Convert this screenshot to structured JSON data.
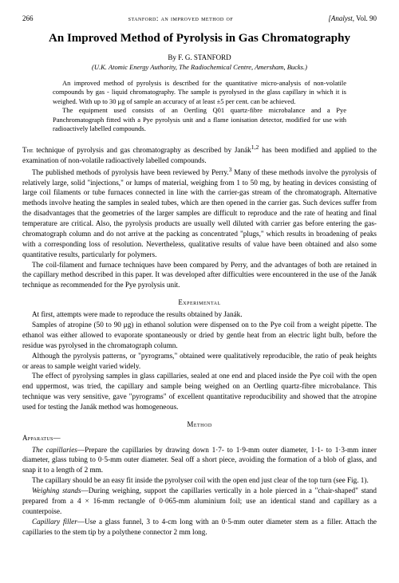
{
  "header": {
    "page_number": "266",
    "running_head": "stanford: an improved method of",
    "journal_ref_prefix": "[Analyst,",
    "journal_ref_vol": " Vol. 90"
  },
  "title": "An Improved Method of Pyrolysis in Gas Chromatography",
  "byline_prefix": "By ",
  "author": "F. G. STANFORD",
  "affiliation": "(U.K. Atomic Energy Authority, The Radiochemical Centre, Amersham, Bucks.)",
  "abstract": {
    "p1": "An improved method of pyrolysis is described for the quantitative micro-analysis of non-volatile compounds by gas - liquid chromatography. The sample is pyrolysed in the glass capillary in which it is weighed. With up to 30 μg of sample an accuracy of at least ±5 per cent. can be achieved.",
    "p2": "The equipment used consists of an Oertling Q01 quartz-fibre microbalance and a Pye Panchromatograph fitted with a Pye pyrolysis unit and a flame ionisation detector, modified for use with radioactively labelled compounds."
  },
  "intro": {
    "p1_a": "The",
    "p1_b": " technique of pyrolysis and gas chromatography as described by Janák",
    "p1_sup": "1,2",
    "p1_c": " has been modified and applied to the examination of non-volatile radioactively labelled compounds.",
    "p2_a": "The published methods of pyrolysis have been reviewed by Perry.",
    "p2_sup": "3",
    "p2_b": " Many of these methods involve the pyrolysis of relatively large, solid \"injections,\" or lumps of material, weighing from 1 to 50 mg, by heating in devices consisting of large coil filaments or tube furnaces connected in line with the carrier-gas stream of the chromatograph. Alternative methods involve heating the samples in sealed tubes, which are then opened in the carrier gas. Such devices suffer from the disadvantages that the geometries of the larger samples are difficult to reproduce and the rate of heating and final temperature are critical. Also, the pyrolysis products are usually well diluted with carrier gas before entering the gas-chromatograph column and do not arrive at the packing as concentrated \"plugs,\" which results in broadening of peaks with a corresponding loss of resolution. Nevertheless, qualitative results of value have been obtained and also some quantitative results, particularly for polymers.",
    "p3": "The coil-filament and furnace techniques have been compared by Perry, and the advantages of both are retained in the capillary method described in this paper. It was developed after difficulties were encountered in the use of the Janák technique as recommended for the Pye pyrolysis unit."
  },
  "experimental_heading": "Experimental",
  "experimental": {
    "p1": "At first, attempts were made to reproduce the results obtained by Janák.",
    "p2": "Samples of atropine (50 to 90 μg) in ethanol solution were dispensed on to the Pye coil from a weight pipette. The ethanol was either allowed to evaporate spontaneously or dried by gentle heat from an electric light bulb, before the residue was pyrolysed in the chromatograph column.",
    "p3": "Although the pyrolysis patterns, or \"pyrograms,\" obtained were qualitatively reproducible, the ratio of peak heights or areas to sample weight varied widely.",
    "p4": "The effect of pyrolysing samples in glass capillaries, sealed at one end and placed inside the Pye coil with the open end uppermost, was tried, the capillary and sample being weighed on an Oertling quartz-fibre microbalance. This technique was very sensitive, gave \"pyrograms\" of excellent quantitative reproducibility and showed that the atropine used for testing the Janák method was homogeneous."
  },
  "method_heading": "Method",
  "apparatus_heading": "Apparatus—",
  "method": {
    "capillaries_label": "The capillaries",
    "capillaries_text": "—Prepare the capillaries by drawing down 1·7- to 1·9-mm outer diameter, 1·1- to 1·3-mm inner diameter, glass tubing to 0·5-mm outer diameter. Seal off a short piece, avoiding the formation of a blob of glass, and snap it to a length of 2 mm.",
    "capillaries_text2": "The capillary should be an easy fit inside the pyrolyser coil with the open end just clear of the top turn (see Fig. 1).",
    "weighing_label": "Weighing stands",
    "weighing_text": "—During weighing, support the capillaries vertically in a hole pierced in a \"chair-shaped\" stand prepared from a 4 × 16-mm rectangle of 0·065-mm aluminium foil; use an identical stand and capillary as a counterpoise.",
    "filler_label": "Capillary filler",
    "filler_text": "—Use a glass funnel, 3 to 4-cm long with an 0·5-mm outer diameter stem as a filler. Attach the capillaries to the stem tip by a polythene connector 2 mm long."
  },
  "colors": {
    "text": "#000000",
    "background": "#ffffff"
  },
  "fonts": {
    "body_family": "Georgia, Times New Roman, serif",
    "title_size_pt": 15,
    "body_size_pt": 9.2,
    "abstract_size_pt": 8.5,
    "header_size_pt": 9
  }
}
